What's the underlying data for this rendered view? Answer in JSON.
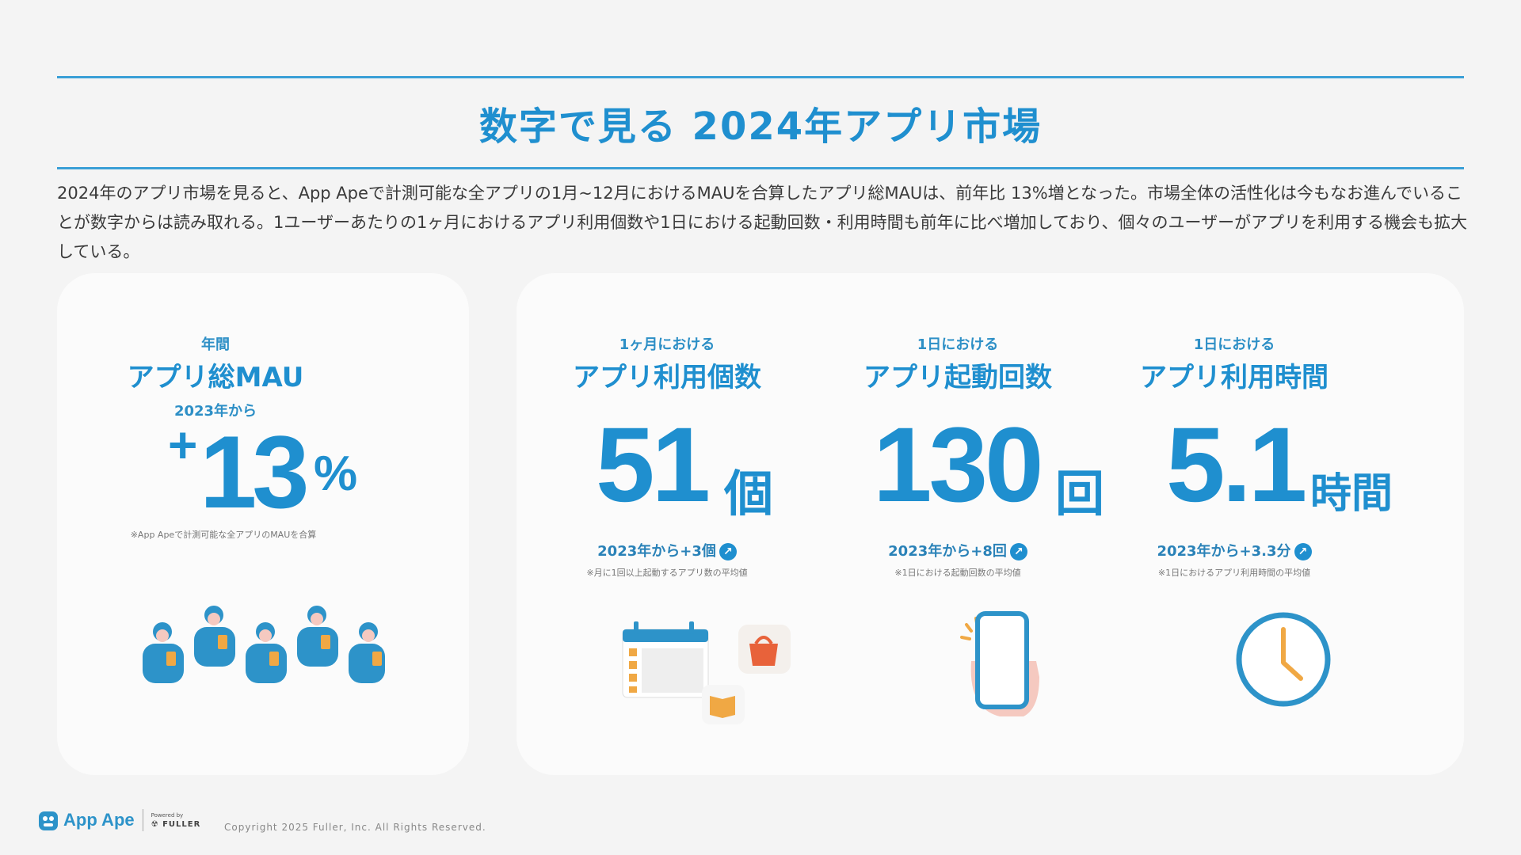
{
  "title": "数字で見る 2024年アプリ市場",
  "intro": "2024年のアプリ市場を見ると、App Apeで計測可能な全アプリの1月~12月におけるMAUを合算したアプリ総MAUは、前年比 13%増となった。市場全体の活性化は今もなお進んでいることが数字からは読み取れる。1ユーザーあたりの1ヶ月におけるアプリ利用個数や1日における起動回数・利用時間も前年に比べ増加しており、個々のユーザーがアプリを利用する機会も拡大している。",
  "mau": {
    "small": "年間",
    "big": "アプリ総MAU",
    "from": "2023年から",
    "sign": "+",
    "value": "13",
    "unit": "%",
    "note": "※App Apeで計測可能な全アプリのMAUを合算"
  },
  "stats": [
    {
      "small": "1ヶ月における",
      "big": "アプリ利用個数",
      "value": "51",
      "unit": "個",
      "delta": "2023年から+3個",
      "note": "※月に1回以上起動するアプリ数の平均値"
    },
    {
      "small": "1日における",
      "big": "アプリ起動回数",
      "value": "130",
      "unit": "回",
      "delta": "2023年から+8回",
      "note": "※1日における起動回数の平均値"
    },
    {
      "small": "1日における",
      "big": "アプリ利用時間",
      "value": "5.1",
      "unit": "時間",
      "delta": "2023年から+3.3分",
      "note": "※1日におけるアプリ利用時間の平均値"
    }
  ],
  "footer": {
    "brand": "App Ape",
    "powered_by": "Powered by",
    "company": "FULLER",
    "copyright": "Copyright 2025 Fuller, Inc. All Rights Reserved."
  },
  "colors": {
    "accent": "#1f8fcf",
    "icon_orange": "#f0a844",
    "icon_red": "#e8623a",
    "skin": "#f5c9c0"
  }
}
